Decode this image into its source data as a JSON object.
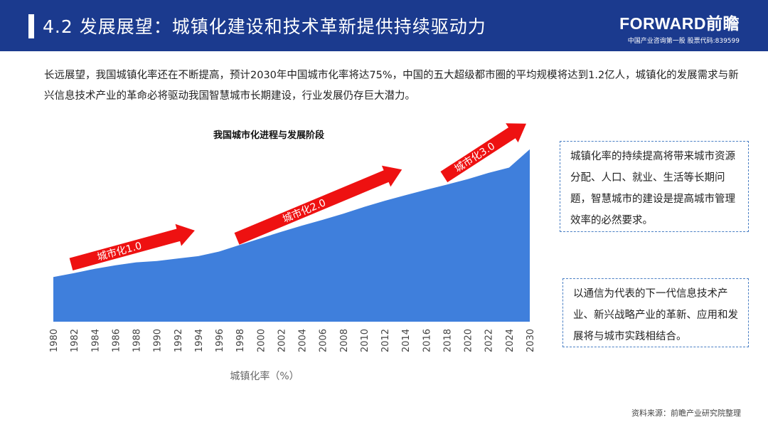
{
  "header": {
    "title": "4.2 发展展望：城镇化建设和技术革新提供持续驱动力",
    "logo_brand": "FORWARD前瞻",
    "logo_sub": "中国产业咨询第一股 股票代码:839599"
  },
  "intro_text": "长远展望，我国城镇化率还在不断提高，预计2030年中国城市化率将达75%，中国的五大超级都市圈的平均规模将达到1.2亿人，城镇化的发展需求与新兴信息技术产业的革命必将驱动我国智慧城市长期建设，行业发展仍存巨大潜力。",
  "chart_data": {
    "type": "area",
    "title": "我国城市化进程与发展阶段",
    "xlabel": "城镇化率（%）",
    "x": [
      "1980",
      "1982",
      "1984",
      "1986",
      "1988",
      "1990",
      "1992",
      "1994",
      "1996",
      "1998",
      "2000",
      "2002",
      "2004",
      "2006",
      "2008",
      "2010",
      "2012",
      "2014",
      "2016",
      "2018",
      "2020",
      "2022",
      "2024",
      "2030"
    ],
    "values": [
      19.4,
      21.1,
      23.0,
      24.5,
      25.8,
      26.4,
      27.5,
      28.5,
      30.5,
      33.4,
      36.2,
      39.1,
      41.8,
      44.3,
      47.0,
      49.9,
      52.6,
      55.0,
      57.4,
      59.6,
      62.0,
      64.7,
      67.0,
      75.0
    ],
    "ylim": [
      0,
      78
    ],
    "annotations": [
      {
        "label": "城市化1.0",
        "from": "1980",
        "to": "1994"
      },
      {
        "label": "城市化2.0",
        "from": "1996",
        "to": "2014"
      },
      {
        "label": "城市化3.0",
        "from": "2016",
        "to": "2030"
      }
    ],
    "colors": {
      "area": "#3f7fdc",
      "arrow": "#ee1111"
    },
    "grid": false
  },
  "side_notes": [
    "城镇化率的持续提高将带来城市资源分配、人口、就业、生活等长期问题，智慧城市的建设是提高城市管理效率的必然要求。",
    "以通信为代表的下一代信息技术产业、新兴战略产业的革新、应用和发展将与城市实践相结合。"
  ],
  "source": "资料来源：前瞻产业研究院整理"
}
